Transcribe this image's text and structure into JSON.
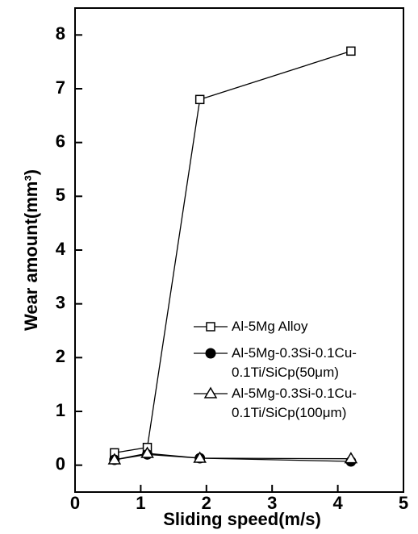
{
  "chart_data": {
    "type": "line",
    "x_label": "Sliding   speed(m/s)",
    "y_label": "Wear amount(mm³)",
    "xlim": [
      0,
      5
    ],
    "xticks": [
      0,
      1,
      2,
      3,
      4,
      5
    ],
    "ylim": [
      -0.5,
      8.5
    ],
    "yticks": [
      0,
      1,
      2,
      3,
      4,
      5,
      6,
      7,
      8
    ],
    "series": [
      {
        "name": "Al-5Mg Alloy",
        "color": "#000000",
        "marker": "square-open",
        "x": [
          0.6,
          1.1,
          1.9,
          4.2
        ],
        "values": [
          0.23,
          0.33,
          6.8,
          7.7
        ]
      },
      {
        "name": "Al-5Mg-0.3Si-0.1Cu-0.1Ti/SiCp(50μm)",
        "color": "#000000",
        "marker": "circle-filled",
        "x": [
          0.6,
          1.1,
          1.9,
          4.2
        ],
        "values": [
          0.1,
          0.2,
          0.13,
          0.07
        ]
      },
      {
        "name": "Al-5Mg-0.3Si-0.1Cu-0.1Ti/SiCp(100μm)",
        "color": "#000000",
        "marker": "triangle-open",
        "x": [
          0.6,
          1.1,
          1.9,
          4.2
        ],
        "values": [
          0.1,
          0.22,
          0.13,
          0.12
        ]
      }
    ]
  }
}
